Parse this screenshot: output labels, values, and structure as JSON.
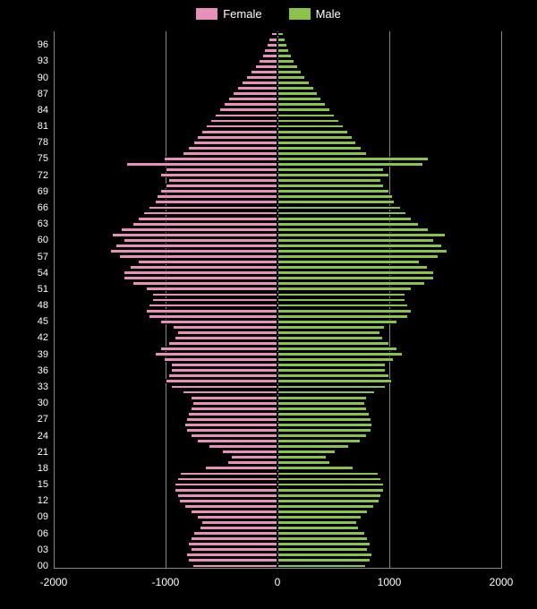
{
  "chart": {
    "type": "population-pyramid",
    "background_color": "#000000",
    "grid_color": "#888888",
    "text_color": "#ffffff",
    "xlim": [
      -2000,
      2000
    ],
    "xtick_step": 1000,
    "xticks": [
      -2000,
      -1000,
      0,
      1000,
      2000
    ],
    "xtick_labels": [
      "-2000",
      "-1000",
      "0",
      "1000",
      "2000"
    ],
    "ages": [
      0,
      1,
      2,
      3,
      4,
      5,
      6,
      7,
      8,
      9,
      10,
      11,
      12,
      13,
      14,
      15,
      16,
      17,
      18,
      19,
      20,
      21,
      22,
      23,
      24,
      25,
      26,
      27,
      28,
      29,
      30,
      31,
      32,
      33,
      34,
      35,
      36,
      37,
      38,
      39,
      40,
      41,
      42,
      43,
      44,
      45,
      46,
      47,
      48,
      49,
      50,
      51,
      52,
      53,
      54,
      55,
      56,
      57,
      58,
      59,
      60,
      61,
      62,
      63,
      64,
      65,
      66,
      67,
      68,
      69,
      70,
      71,
      72,
      73,
      74,
      75,
      76,
      77,
      78,
      79,
      80,
      81,
      82,
      83,
      84,
      85,
      86,
      87,
      88,
      89,
      90,
      91,
      92,
      93,
      94,
      95,
      96,
      97,
      98
    ],
    "ytick_step": 3,
    "ytick_labels": [
      "00",
      "03",
      "06",
      "09",
      "12",
      "15",
      "18",
      "21",
      "24",
      "27",
      "30",
      "33",
      "36",
      "39",
      "42",
      "45",
      "48",
      "51",
      "54",
      "57",
      "60",
      "63",
      "66",
      "69",
      "72",
      "75",
      "78",
      "81",
      "84",
      "87",
      "90",
      "93",
      "96"
    ],
    "legend": {
      "female": {
        "label": "Female",
        "color": "#e890bb"
      },
      "male": {
        "label": "Male",
        "color": "#8bc34a"
      }
    },
    "female": [
      760,
      800,
      820,
      780,
      800,
      780,
      750,
      700,
      680,
      720,
      780,
      830,
      880,
      900,
      920,
      920,
      900,
      870,
      650,
      450,
      420,
      500,
      620,
      720,
      780,
      820,
      830,
      820,
      800,
      780,
      760,
      780,
      850,
      950,
      1000,
      980,
      950,
      950,
      1020,
      1100,
      1050,
      980,
      920,
      900,
      940,
      1050,
      1150,
      1180,
      1150,
      1120,
      1120,
      1180,
      1300,
      1380,
      1380,
      1320,
      1250,
      1420,
      1500,
      1450,
      1380,
      1480,
      1400,
      1300,
      1250,
      1200,
      1150,
      1100,
      1080,
      1050,
      1000,
      980,
      1050,
      1000,
      1350,
      1020,
      850,
      800,
      750,
      720,
      680,
      640,
      600,
      560,
      520,
      480,
      440,
      400,
      360,
      320,
      280,
      240,
      200,
      170,
      140,
      120,
      100,
      80,
      60
    ],
    "male": [
      790,
      830,
      850,
      810,
      830,
      810,
      780,
      730,
      710,
      750,
      810,
      860,
      910,
      930,
      950,
      950,
      930,
      900,
      680,
      470,
      440,
      520,
      640,
      740,
      800,
      840,
      850,
      840,
      820,
      800,
      780,
      800,
      870,
      970,
      1020,
      1000,
      970,
      970,
      1040,
      1120,
      1070,
      1000,
      940,
      920,
      960,
      1070,
      1170,
      1200,
      1170,
      1140,
      1140,
      1200,
      1320,
      1400,
      1400,
      1340,
      1270,
      1440,
      1520,
      1470,
      1400,
      1500,
      1350,
      1260,
      1200,
      1150,
      1100,
      1050,
      1030,
      1000,
      950,
      930,
      1000,
      950,
      1300,
      1350,
      800,
      750,
      700,
      670,
      630,
      590,
      550,
      510,
      470,
      430,
      395,
      360,
      325,
      290,
      250,
      215,
      180,
      150,
      125,
      105,
      85,
      68,
      52
    ],
    "label_fontsize": 11,
    "tick_fontsize": 12
  }
}
